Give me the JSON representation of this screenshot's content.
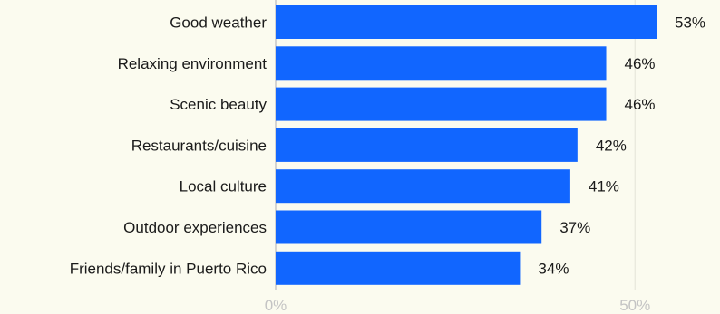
{
  "chart_data": {
    "type": "bar",
    "orientation": "horizontal",
    "categories": [
      "Good weather",
      "Relaxing environment",
      "Scenic beauty",
      "Restaurants/cuisine",
      "Local culture",
      "Outdoor experiences",
      "Friends/family in Puerto Rico"
    ],
    "values": [
      53,
      46,
      46,
      42,
      41,
      37,
      34
    ],
    "value_format": "{v}%",
    "xlim": [
      0,
      55
    ],
    "xticks": [
      0,
      50
    ],
    "xtick_labels": [
      "0%",
      "50%"
    ],
    "grid": true,
    "bar_color": "#1166ff",
    "background": "#fbfbef"
  }
}
